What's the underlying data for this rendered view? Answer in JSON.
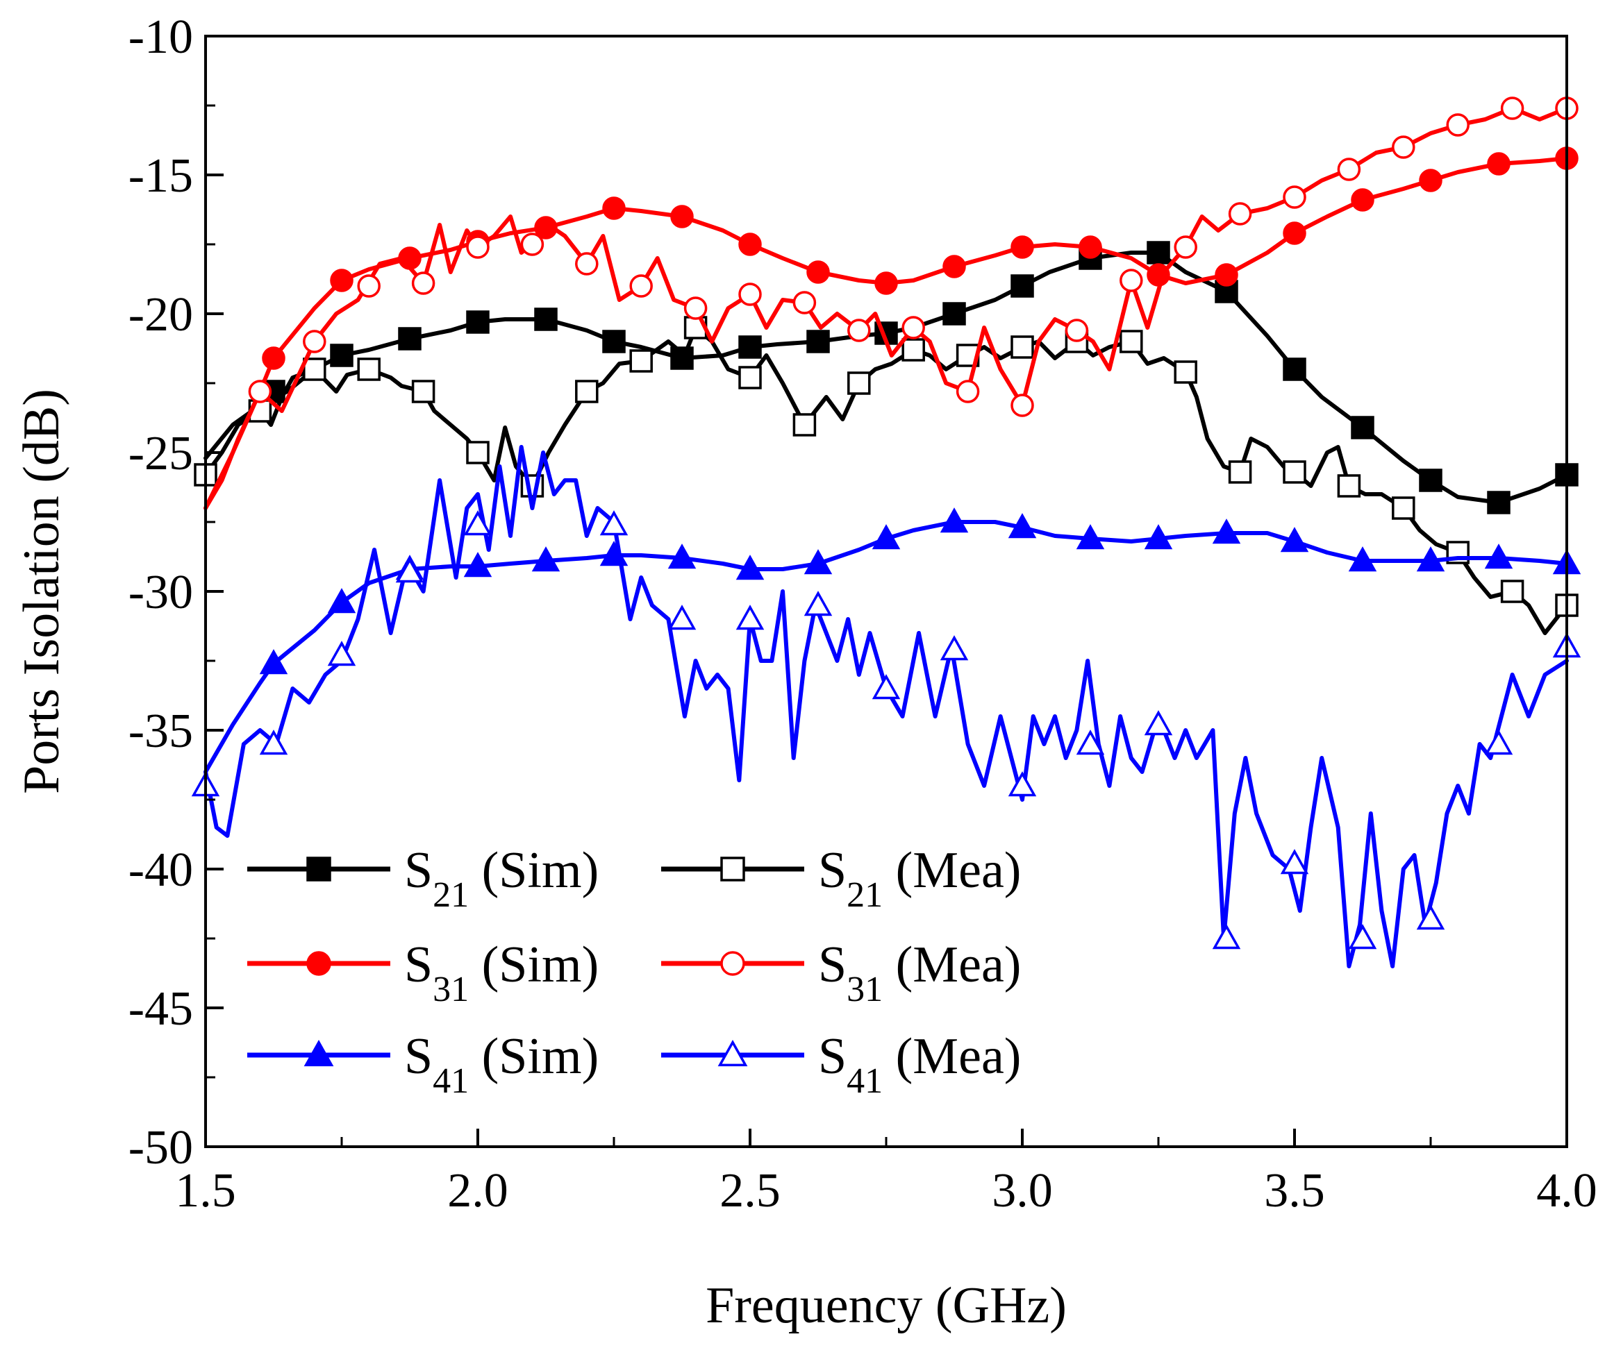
{
  "chart_data": {
    "type": "line",
    "title": "",
    "xlabel": "Frequency (GHz)",
    "ylabel": "Ports Isolation (dB)",
    "xlim": [
      1.5,
      4.0
    ],
    "ylim": [
      -50,
      -10
    ],
    "xticks": [
      "1.5",
      "2.0",
      "2.5",
      "3.0",
      "3.5",
      "4.0"
    ],
    "yticks": [
      "-10",
      "-15",
      "-20",
      "-25",
      "-30",
      "-35",
      "-40",
      "-45",
      "-50"
    ],
    "xtick_values": [
      1.5,
      2.0,
      2.5,
      3.0,
      3.5,
      4.0
    ],
    "ytick_values": [
      -10,
      -15,
      -20,
      -25,
      -30,
      -35,
      -40,
      -45,
      -50
    ],
    "grid": false,
    "legend_position": "bottom-left",
    "series": [
      {
        "name": "S21 (Sim)",
        "sub": "21",
        "label_tail": " (Sim)",
        "color": "#000000",
        "marker": "square",
        "filled": true,
        "x": [
          1.5,
          1.55,
          1.6,
          1.65,
          1.7,
          1.75,
          1.8,
          1.875,
          1.95,
          2.0,
          2.05,
          2.125,
          2.2,
          2.25,
          2.3,
          2.375,
          2.45,
          2.5,
          2.55,
          2.625,
          2.7,
          2.75,
          2.8,
          2.875,
          2.95,
          3.0,
          3.05,
          3.125,
          3.2,
          3.25,
          3.3,
          3.375,
          3.45,
          3.5,
          3.55,
          3.625,
          3.7,
          3.75,
          3.8,
          3.875,
          3.95,
          4.0
        ],
        "y": [
          -25.2,
          -24.0,
          -23.3,
          -22.8,
          -22.0,
          -21.5,
          -21.3,
          -20.9,
          -20.6,
          -20.3,
          -20.2,
          -20.2,
          -20.6,
          -21.0,
          -21.2,
          -21.6,
          -21.5,
          -21.2,
          -21.1,
          -21.0,
          -20.8,
          -20.7,
          -20.5,
          -20.0,
          -19.5,
          -19.0,
          -18.5,
          -18.0,
          -17.8,
          -17.8,
          -18.5,
          -19.2,
          -20.8,
          -22.0,
          -23.0,
          -24.1,
          -25.3,
          -26.0,
          -26.6,
          -26.8,
          -26.3,
          -25.8
        ],
        "markers_x": [
          1.625,
          1.75,
          1.875,
          2.0,
          2.125,
          2.25,
          2.375,
          2.5,
          2.625,
          2.75,
          2.875,
          3.0,
          3.125,
          3.25,
          3.375,
          3.5,
          3.625,
          3.75,
          3.875,
          4.0
        ],
        "markers_y": [
          -22.8,
          -21.5,
          -20.9,
          -20.3,
          -20.2,
          -21.0,
          -21.6,
          -21.2,
          -21.0,
          -20.7,
          -20.0,
          -19.0,
          -18.0,
          -17.8,
          -19.2,
          -22.0,
          -24.1,
          -26.0,
          -26.8,
          -25.8
        ]
      },
      {
        "name": "S21 (Mea)",
        "sub": "21",
        "label_tail": " (Mea)",
        "color": "#000000",
        "marker": "square",
        "filled": false,
        "x": [
          1.5,
          1.53,
          1.56,
          1.6,
          1.62,
          1.64,
          1.66,
          1.7,
          1.74,
          1.76,
          1.8,
          1.84,
          1.86,
          1.9,
          1.92,
          1.95,
          1.98,
          2.0,
          2.03,
          2.05,
          2.07,
          2.1,
          2.13,
          2.16,
          2.2,
          2.23,
          2.26,
          2.3,
          2.35,
          2.38,
          2.4,
          2.43,
          2.46,
          2.5,
          2.53,
          2.56,
          2.6,
          2.62,
          2.64,
          2.67,
          2.7,
          2.73,
          2.76,
          2.8,
          2.83,
          2.86,
          2.9,
          2.93,
          2.96,
          3.0,
          3.03,
          3.06,
          3.1,
          3.13,
          3.16,
          3.2,
          3.23,
          3.26,
          3.3,
          3.32,
          3.34,
          3.37,
          3.4,
          3.42,
          3.45,
          3.48,
          3.5,
          3.53,
          3.56,
          3.58,
          3.6,
          3.63,
          3.66,
          3.7,
          3.73,
          3.76,
          3.8,
          3.83,
          3.86,
          3.9,
          3.93,
          3.96,
          4.0
        ],
        "y": [
          -25.8,
          -25.0,
          -24.0,
          -23.5,
          -24.0,
          -23.0,
          -22.3,
          -22.0,
          -22.8,
          -22.2,
          -22.0,
          -22.3,
          -22.6,
          -22.8,
          -23.5,
          -24.0,
          -24.5,
          -25.0,
          -26.0,
          -24.1,
          -25.5,
          -26.2,
          -25.0,
          -24.0,
          -22.8,
          -22.5,
          -21.8,
          -21.7,
          -21.0,
          -21.5,
          -20.5,
          -21.0,
          -22.0,
          -22.3,
          -21.5,
          -22.5,
          -24.0,
          -23.5,
          -23.0,
          -23.8,
          -22.5,
          -22.0,
          -21.8,
          -21.3,
          -21.5,
          -22.0,
          -21.5,
          -21.2,
          -21.6,
          -21.2,
          -21.0,
          -21.6,
          -21.0,
          -21.5,
          -21.2,
          -21.0,
          -21.8,
          -21.6,
          -22.1,
          -23.0,
          -24.5,
          -25.5,
          -25.7,
          -24.5,
          -24.8,
          -25.5,
          -25.7,
          -26.2,
          -25.0,
          -24.8,
          -26.2,
          -26.5,
          -26.5,
          -27.0,
          -27.8,
          -28.3,
          -28.6,
          -29.5,
          -30.2,
          -30.0,
          -30.5,
          -31.5,
          -30.5
        ],
        "markers_x": [
          1.5,
          1.6,
          1.7,
          1.8,
          1.9,
          2.0,
          2.1,
          2.2,
          2.3,
          2.4,
          2.5,
          2.6,
          2.7,
          2.8,
          2.9,
          3.0,
          3.1,
          3.2,
          3.3,
          3.4,
          3.5,
          3.6,
          3.7,
          3.8,
          3.9,
          4.0
        ],
        "markers_y": [
          -25.8,
          -23.5,
          -22.0,
          -22.0,
          -22.8,
          -25.0,
          -26.2,
          -22.8,
          -21.7,
          -20.5,
          -22.3,
          -24.0,
          -22.5,
          -21.3,
          -21.5,
          -21.2,
          -21.0,
          -21.0,
          -22.1,
          -25.7,
          -25.7,
          -26.2,
          -27.0,
          -28.6,
          -30.0,
          -30.5
        ]
      },
      {
        "name": "S31 (Sim)",
        "sub": "31",
        "label_tail": " (Sim)",
        "color": "#ff0000",
        "marker": "circle",
        "filled": true,
        "x": [
          1.5,
          1.55,
          1.6,
          1.625,
          1.7,
          1.75,
          1.8,
          1.875,
          1.95,
          2.0,
          2.06,
          2.125,
          2.2,
          2.25,
          2.3,
          2.375,
          2.45,
          2.5,
          2.56,
          2.625,
          2.7,
          2.75,
          2.8,
          2.875,
          2.95,
          3.0,
          3.06,
          3.125,
          3.2,
          3.25,
          3.3,
          3.375,
          3.45,
          3.5,
          3.56,
          3.625,
          3.7,
          3.75,
          3.8,
          3.875,
          3.95,
          4.0
        ],
        "y": [
          -27.0,
          -25.0,
          -22.8,
          -21.6,
          -19.8,
          -18.8,
          -18.4,
          -18.0,
          -17.7,
          -17.4,
          -17.1,
          -16.9,
          -16.5,
          -16.2,
          -16.3,
          -16.5,
          -17.0,
          -17.5,
          -18.0,
          -18.5,
          -18.8,
          -18.9,
          -18.8,
          -18.3,
          -17.9,
          -17.6,
          -17.5,
          -17.6,
          -18.0,
          -18.6,
          -18.9,
          -18.6,
          -17.8,
          -17.1,
          -16.5,
          -15.9,
          -15.5,
          -15.2,
          -14.9,
          -14.6,
          -14.5,
          -14.4
        ],
        "markers_x": [
          1.625,
          1.75,
          1.875,
          2.0,
          2.125,
          2.25,
          2.375,
          2.5,
          2.625,
          2.75,
          2.875,
          3.0,
          3.125,
          3.25,
          3.375,
          3.5,
          3.625,
          3.75,
          3.875,
          4.0
        ],
        "markers_y": [
          -21.6,
          -18.8,
          -18.0,
          -17.4,
          -16.9,
          -16.2,
          -16.5,
          -17.5,
          -18.5,
          -18.9,
          -18.3,
          -17.6,
          -17.6,
          -18.6,
          -18.6,
          -17.1,
          -15.9,
          -15.2,
          -14.6,
          -14.4
        ]
      },
      {
        "name": "S31 (Mea)",
        "sub": "31",
        "label_tail": " (Mea)",
        "color": "#ff0000",
        "marker": "circle",
        "filled": false,
        "x": [
          1.5,
          1.53,
          1.56,
          1.6,
          1.64,
          1.7,
          1.74,
          1.78,
          1.82,
          1.86,
          1.9,
          1.93,
          1.95,
          1.98,
          2.0,
          2.03,
          2.06,
          2.08,
          2.1,
          2.13,
          2.16,
          2.2,
          2.23,
          2.26,
          2.3,
          2.33,
          2.36,
          2.4,
          2.43,
          2.46,
          2.5,
          2.53,
          2.56,
          2.6,
          2.63,
          2.66,
          2.7,
          2.73,
          2.76,
          2.8,
          2.83,
          2.86,
          2.9,
          2.93,
          2.96,
          3.0,
          3.03,
          3.06,
          3.1,
          3.13,
          3.16,
          3.2,
          3.23,
          3.26,
          3.3,
          3.33,
          3.36,
          3.4,
          3.45,
          3.5,
          3.55,
          3.6,
          3.65,
          3.7,
          3.75,
          3.8,
          3.85,
          3.9,
          3.95,
          4.0
        ],
        "y": [
          -27.0,
          -26.0,
          -24.5,
          -22.8,
          -23.5,
          -21.0,
          -20.0,
          -19.5,
          -18.2,
          -18.0,
          -18.9,
          -16.8,
          -18.5,
          -17.0,
          -17.6,
          -17.2,
          -16.5,
          -17.8,
          -17.5,
          -16.8,
          -17.2,
          -18.2,
          -17.2,
          -19.5,
          -19.0,
          -18.0,
          -19.5,
          -19.8,
          -21.0,
          -19.8,
          -19.3,
          -20.5,
          -19.5,
          -19.6,
          -20.5,
          -20.0,
          -20.6,
          -20.0,
          -21.5,
          -20.5,
          -21.0,
          -22.5,
          -22.8,
          -20.5,
          -22.0,
          -23.3,
          -21.0,
          -20.2,
          -20.6,
          -21.0,
          -22.0,
          -18.8,
          -20.5,
          -18.5,
          -17.6,
          -16.5,
          -17.0,
          -16.4,
          -16.2,
          -15.8,
          -15.2,
          -14.8,
          -14.2,
          -14.0,
          -13.5,
          -13.2,
          -13.0,
          -12.6,
          -13.0,
          -12.6
        ],
        "markers_x": [
          1.6,
          1.7,
          1.8,
          1.9,
          2.0,
          2.1,
          2.2,
          2.3,
          2.4,
          2.5,
          2.6,
          2.7,
          2.8,
          2.9,
          3.0,
          3.1,
          3.2,
          3.3,
          3.4,
          3.5,
          3.6,
          3.7,
          3.8,
          3.9,
          4.0
        ],
        "markers_y": [
          -22.8,
          -21.0,
          -19.0,
          -18.9,
          -17.6,
          -17.5,
          -18.2,
          -19.0,
          -19.8,
          -19.3,
          -19.6,
          -20.6,
          -20.5,
          -22.8,
          -23.3,
          -20.6,
          -18.8,
          -17.6,
          -16.4,
          -15.8,
          -14.8,
          -14.0,
          -13.2,
          -12.6,
          -12.6
        ]
      },
      {
        "name": "S41 (Sim)",
        "sub": "41",
        "label_tail": " (Sim)",
        "color": "#0000ff",
        "marker": "triangle",
        "filled": true,
        "x": [
          1.5,
          1.55,
          1.6,
          1.625,
          1.7,
          1.75,
          1.8,
          1.875,
          1.95,
          2.0,
          2.06,
          2.125,
          2.2,
          2.25,
          2.3,
          2.375,
          2.45,
          2.5,
          2.56,
          2.625,
          2.7,
          2.75,
          2.8,
          2.875,
          2.95,
          3.0,
          3.06,
          3.125,
          3.2,
          3.25,
          3.3,
          3.375,
          3.45,
          3.5,
          3.56,
          3.625,
          3.7,
          3.75,
          3.8,
          3.875,
          3.95,
          4.0
        ],
        "y": [
          -36.5,
          -34.8,
          -33.3,
          -32.6,
          -31.4,
          -30.4,
          -29.7,
          -29.2,
          -29.1,
          -29.1,
          -29.0,
          -28.9,
          -28.8,
          -28.7,
          -28.7,
          -28.8,
          -29.0,
          -29.2,
          -29.2,
          -29.0,
          -28.5,
          -28.1,
          -27.8,
          -27.5,
          -27.5,
          -27.7,
          -28.0,
          -28.1,
          -28.2,
          -28.1,
          -28.0,
          -27.9,
          -27.9,
          -28.2,
          -28.6,
          -28.9,
          -28.9,
          -28.9,
          -28.8,
          -28.8,
          -28.9,
          -29.0
        ],
        "markers_x": [
          1.625,
          1.75,
          1.875,
          2.0,
          2.125,
          2.25,
          2.375,
          2.5,
          2.625,
          2.75,
          2.875,
          3.0,
          3.125,
          3.25,
          3.375,
          3.5,
          3.625,
          3.75,
          3.875,
          4.0
        ],
        "markers_y": [
          -32.6,
          -30.4,
          -29.2,
          -29.1,
          -28.9,
          -28.7,
          -28.8,
          -29.2,
          -29.0,
          -28.1,
          -27.5,
          -27.7,
          -28.1,
          -28.1,
          -27.9,
          -28.2,
          -28.9,
          -28.9,
          -28.8,
          -29.0
        ]
      },
      {
        "name": "S41 (Mea)",
        "sub": "41",
        "label_tail": " (Mea)",
        "color": "#0000ff",
        "marker": "triangle",
        "filled": false,
        "x": [
          1.5,
          1.52,
          1.54,
          1.57,
          1.6,
          1.63,
          1.66,
          1.69,
          1.72,
          1.75,
          1.78,
          1.81,
          1.84,
          1.87,
          1.9,
          1.93,
          1.96,
          1.98,
          2.0,
          2.02,
          2.04,
          2.06,
          2.08,
          2.1,
          2.12,
          2.14,
          2.16,
          2.18,
          2.2,
          2.22,
          2.25,
          2.28,
          2.3,
          2.32,
          2.35,
          2.38,
          2.4,
          2.42,
          2.44,
          2.46,
          2.48,
          2.5,
          2.52,
          2.54,
          2.56,
          2.58,
          2.6,
          2.62,
          2.64,
          2.66,
          2.68,
          2.7,
          2.72,
          2.75,
          2.78,
          2.81,
          2.84,
          2.87,
          2.9,
          2.93,
          2.96,
          3.0,
          3.02,
          3.04,
          3.06,
          3.08,
          3.1,
          3.12,
          3.14,
          3.16,
          3.18,
          3.2,
          3.22,
          3.25,
          3.28,
          3.3,
          3.32,
          3.35,
          3.37,
          3.39,
          3.41,
          3.43,
          3.46,
          3.49,
          3.51,
          3.53,
          3.55,
          3.58,
          3.6,
          3.62,
          3.64,
          3.66,
          3.68,
          3.7,
          3.72,
          3.74,
          3.76,
          3.78,
          3.8,
          3.82,
          3.84,
          3.86,
          3.88,
          3.9,
          3.93,
          3.96,
          4.0
        ],
        "y": [
          -36.5,
          -38.5,
          -38.8,
          -35.5,
          -35.0,
          -35.5,
          -33.5,
          -34.0,
          -33.0,
          -32.5,
          -31.0,
          -28.5,
          -31.5,
          -29.0,
          -30.0,
          -26.0,
          -29.5,
          -27.0,
          -26.5,
          -28.5,
          -25.5,
          -28.0,
          -24.8,
          -27.0,
          -25.0,
          -26.5,
          -26.0,
          -26.0,
          -28.0,
          -27.0,
          -27.5,
          -31.0,
          -29.5,
          -30.5,
          -31.0,
          -34.5,
          -32.5,
          -33.5,
          -33.0,
          -33.5,
          -36.8,
          -31.0,
          -32.5,
          -32.5,
          -30.0,
          -36.0,
          -32.5,
          -30.5,
          -31.5,
          -32.5,
          -31.0,
          -33.0,
          -31.5,
          -33.5,
          -34.5,
          -31.5,
          -34.5,
          -32.0,
          -35.5,
          -37.0,
          -34.5,
          -37.5,
          -34.5,
          -35.5,
          -34.5,
          -36.0,
          -35.0,
          -32.5,
          -35.5,
          -37.0,
          -34.5,
          -36.0,
          -36.5,
          -34.5,
          -36.0,
          -35.0,
          -36.0,
          -35.0,
          -42.5,
          -38.0,
          -36.0,
          -38.0,
          -39.5,
          -40.0,
          -41.5,
          -38.5,
          -36.0,
          -38.5,
          -43.5,
          -42.0,
          -38.0,
          -41.5,
          -43.5,
          -40.0,
          -39.5,
          -42.0,
          -40.5,
          -38.0,
          -37.0,
          -38.0,
          -35.5,
          -36.0,
          -34.5,
          -33.0,
          -34.5,
          -33.0,
          -32.5
        ],
        "markers_x": [
          1.5,
          1.625,
          1.75,
          1.875,
          2.0,
          2.25,
          2.375,
          2.5,
          2.625,
          2.75,
          2.875,
          3.0,
          3.125,
          3.25,
          3.375,
          3.5,
          3.625,
          3.75,
          3.875,
          4.0
        ],
        "markers_y": [
          -37.0,
          -35.5,
          -32.3,
          -29.3,
          -27.6,
          -27.6,
          -31.0,
          -31.0,
          -30.5,
          -33.5,
          -32.1,
          -37.0,
          -35.5,
          -34.8,
          -42.5,
          -39.8,
          -42.5,
          -41.8,
          -35.5,
          -32.0
        ]
      }
    ]
  }
}
